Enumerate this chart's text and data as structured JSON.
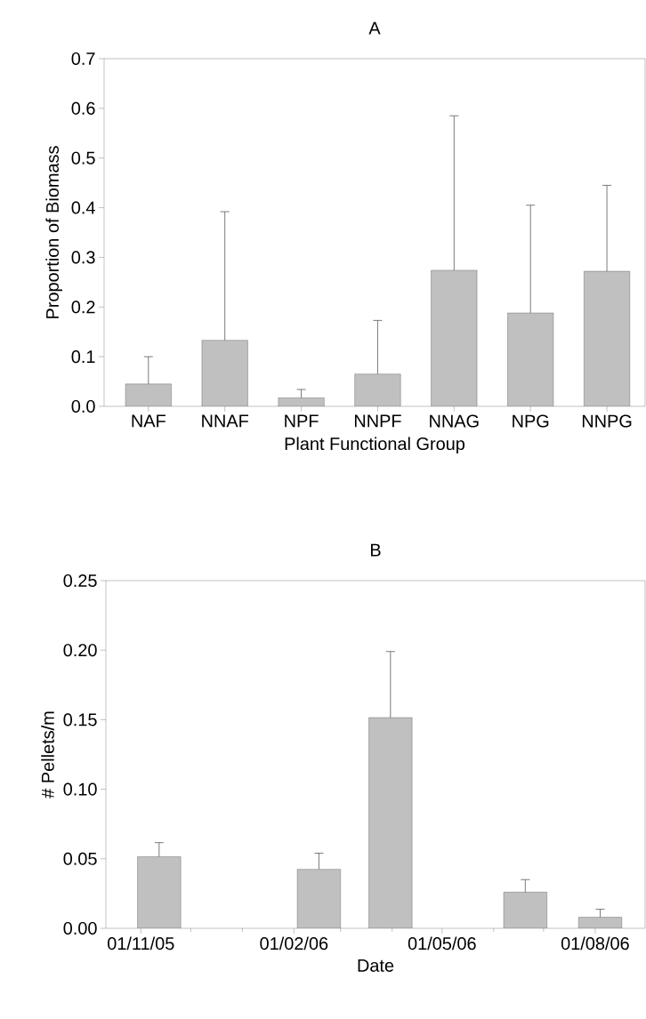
{
  "chart_data": [
    {
      "type": "bar",
      "title": "A",
      "xlabel": "Plant Functional Group",
      "ylabel": "Proportion of Biomass",
      "categories": [
        "NAF",
        "NNAF",
        "NPF",
        "NNPF",
        "NNAG",
        "NPG",
        "NNPG"
      ],
      "values": [
        0.045,
        0.133,
        0.017,
        0.065,
        0.274,
        0.188,
        0.272
      ],
      "errors": [
        [
          0.045,
          0.1
        ],
        [
          0.133,
          0.392
        ],
        [
          0.017,
          0.034
        ],
        [
          0.065,
          0.173
        ],
        [
          0.274,
          0.585
        ],
        [
          0.188,
          0.405
        ],
        [
          0.272,
          0.445
        ]
      ],
      "color": "#c0c0c0",
      "ylim": [
        0,
        0.7
      ],
      "yticks": [
        {
          "value": 0,
          "label": "0.0"
        },
        0.1,
        0.2,
        0.3,
        0.4,
        0.5,
        0.6,
        0.7
      ]
    },
    {
      "type": "bar",
      "title": "B",
      "xlabel": "Date",
      "ylabel": "# Pellets/m",
      "x": [
        "2005-11-12",
        "2006-02-16",
        "2006-03-31",
        "2006-06-20",
        "2006-08-04"
      ],
      "values": [
        0.0515,
        0.0424,
        0.1515,
        0.026,
        0.008
      ],
      "errors": [
        [
          0.0515,
          0.0616
        ],
        [
          0.0424,
          0.054
        ],
        [
          0.1515,
          0.199
        ],
        [
          0.026,
          0.035
        ],
        [
          0.008,
          0.0137
        ]
      ],
      "color": "#c0c0c0",
      "xlim": [
        "2005-10-11",
        "2006-08-31"
      ],
      "xticks": [
        {
          "value": "2005-11-01",
          "label": "01/11/05"
        },
        {
          "value": "2005-12-01",
          "label": null
        },
        {
          "value": "2006-01-01",
          "label": null
        },
        {
          "value": "2006-02-01",
          "label": "01/02/06"
        },
        {
          "value": "2006-03-01",
          "label": null
        },
        {
          "value": "2006-04-01",
          "label": null
        },
        {
          "value": "2006-05-01",
          "label": "01/05/06"
        },
        {
          "value": "2006-06-01",
          "label": null
        },
        {
          "value": "2006-07-01",
          "label": null
        },
        {
          "value": "2006-08-01",
          "label": "01/08/06"
        }
      ],
      "ylim": [
        0,
        0.25
      ],
      "yticks": [
        {
          "value": 0,
          "label": "0.00"
        },
        {
          "value": 0.05,
          "label": "0.05"
        },
        {
          "value": 0.1,
          "label": "0.10"
        },
        {
          "value": 0.15,
          "label": "0.15"
        },
        {
          "value": 0.2,
          "label": "0.20"
        },
        {
          "value": 0.25,
          "label": "0.25"
        }
      ]
    }
  ]
}
